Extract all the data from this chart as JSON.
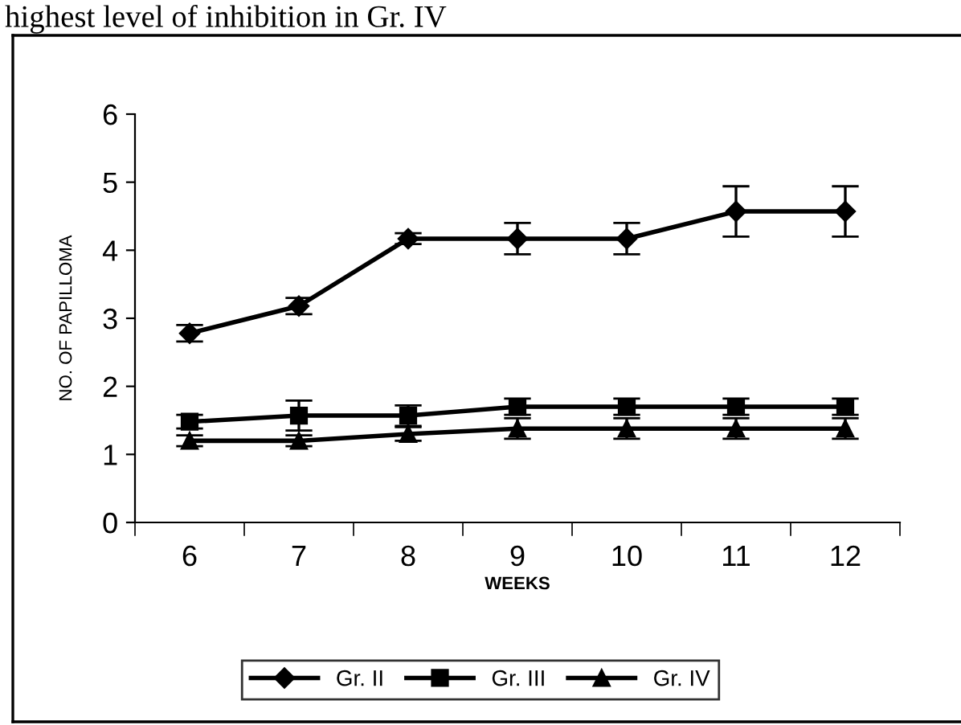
{
  "chart_data": {
    "type": "line",
    "annotations": [
      "highest level of inhibition in Gr. IV"
    ],
    "xlabel": "WEEKS",
    "ylabel": "NO. OF PAPILLOMA",
    "categories": [
      "6",
      "7",
      "8",
      "9",
      "10",
      "11",
      "12"
    ],
    "ylim": [
      0,
      6
    ],
    "yticks": [
      0,
      1,
      2,
      3,
      4,
      5,
      6
    ],
    "grid": false,
    "legend": "bottom",
    "series": [
      {
        "name": "Gr. II",
        "color": "#000000",
        "marker": "diamond",
        "values": [
          2.78,
          3.18,
          4.17,
          4.17,
          4.17,
          4.57,
          4.57
        ],
        "errors": [
          0.12,
          0.12,
          0.08,
          0.23,
          0.23,
          0.37,
          0.37
        ]
      },
      {
        "name": "Gr. III",
        "color": "#000000",
        "marker": "square",
        "values": [
          1.48,
          1.57,
          1.57,
          1.7,
          1.7,
          1.7,
          1.7
        ],
        "errors": [
          0.1,
          0.22,
          0.15,
          0.12,
          0.12,
          0.12,
          0.12
        ]
      },
      {
        "name": "Gr. IV",
        "color": "#000000",
        "marker": "triangle",
        "values": [
          1.2,
          1.2,
          1.3,
          1.38,
          1.38,
          1.38,
          1.38
        ],
        "errors": [
          0.08,
          0.08,
          0.1,
          0.15,
          0.15,
          0.15,
          0.15
        ]
      }
    ]
  }
}
